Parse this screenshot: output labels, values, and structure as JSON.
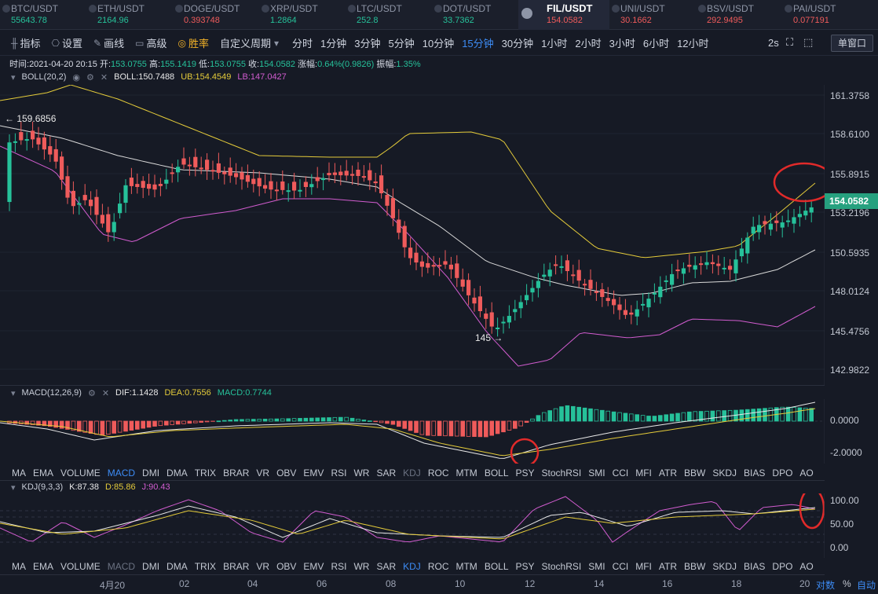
{
  "tickers": [
    {
      "symbol": "BTC/USDT",
      "price": "55643.78",
      "dir": "up"
    },
    {
      "symbol": "ETH/USDT",
      "price": "2164.96",
      "dir": "up"
    },
    {
      "symbol": "DOGE/USDT",
      "price": "0.393748",
      "dir": "dn"
    },
    {
      "symbol": "XRP/USDT",
      "price": "1.2864",
      "dir": "up"
    },
    {
      "symbol": "LTC/USDT",
      "price": "252.8",
      "dir": "up"
    },
    {
      "symbol": "DOT/USDT",
      "price": "33.7362",
      "dir": "up"
    },
    {
      "symbol": "FIL/USDT",
      "price": "154.0582",
      "dir": "dn",
      "active": true
    },
    {
      "symbol": "UNI/USDT",
      "price": "30.1662",
      "dir": "dn"
    },
    {
      "symbol": "BSV/USDT",
      "price": "292.9495",
      "dir": "dn"
    },
    {
      "symbol": "PAI/USDT",
      "price": "0.077191",
      "dir": "dn"
    }
  ],
  "toolbar": {
    "indicators": "指标",
    "settings": "设置",
    "draw": "画线",
    "advanced": "高级",
    "winrate": "胜率",
    "custom": "自定义周期",
    "periods": [
      "分时",
      "1分钟",
      "3分钟",
      "5分钟",
      "10分钟",
      "15分钟",
      "30分钟",
      "1小时",
      "2小时",
      "3小时",
      "6小时",
      "12小时"
    ],
    "active_period": "15分钟",
    "refresh": "2s",
    "single_window": "单窗口"
  },
  "ohlc": {
    "time_label": "时间:",
    "time": "2021-04-20 20:15",
    "open_label": "开:",
    "open": "153.0755",
    "high_label": "高:",
    "high": "155.1419",
    "low_label": "低:",
    "low": "153.0755",
    "close_label": "收:",
    "close": "154.0582",
    "chg_label": "涨幅:",
    "chg": "0.64%(0.9826)",
    "amp_label": "振幅:",
    "amp": "1.35%"
  },
  "boll": {
    "name": "BOLL(20,2)",
    "mid": "BOLL:150.7488",
    "ub": "UB:154.4549",
    "lb": "LB:147.0427"
  },
  "macd": {
    "name": "MACD(12,26,9)",
    "dif": "DIF:1.1428",
    "dea": "DEA:0.7556",
    "macd": "MACD:0.7744"
  },
  "kdj": {
    "name": "KDJ(9,3,3)",
    "k": "K:87.38",
    "d": "D:85.86",
    "j": "J:90.43"
  },
  "main_axis": [
    "161.3758",
    "158.6100",
    "155.8915",
    "153.2196",
    "150.5935",
    "148.0124",
    "145.4756",
    "142.9822"
  ],
  "current_price": "154.0582",
  "max_marker": "← 159.6856",
  "min_marker": "145 →",
  "macd_axis": [
    "0.0000",
    "-2.0000"
  ],
  "kdj_axis": [
    "100.00",
    "50.00",
    "0.00"
  ],
  "indicator_tabs": [
    "MA",
    "EMA",
    "VOLUME",
    "MACD",
    "DMI",
    "DMA",
    "TRIX",
    "BRAR",
    "VR",
    "OBV",
    "EMV",
    "RSI",
    "WR",
    "SAR",
    "KDJ",
    "ROC",
    "MTM",
    "BOLL",
    "PSY",
    "StochRSI",
    "SMI",
    "CCI",
    "MFI",
    "ATR",
    "BBW",
    "SKDJ",
    "BIAS",
    "DPO",
    "AO"
  ],
  "x_labels": [
    "4月20",
    "02",
    "04",
    "06",
    "08",
    "10",
    "12",
    "14",
    "16",
    "18",
    "20"
  ],
  "footer": {
    "log": "对数",
    "pct": "%",
    "auto": "自动"
  },
  "colors": {
    "up": "#26c19a",
    "down": "#ef5b5b",
    "boll_mid": "#d9d9d9",
    "boll_ub": "#e4cb3a",
    "boll_lb": "#d15ccf",
    "active": "#3d8cf5"
  }
}
